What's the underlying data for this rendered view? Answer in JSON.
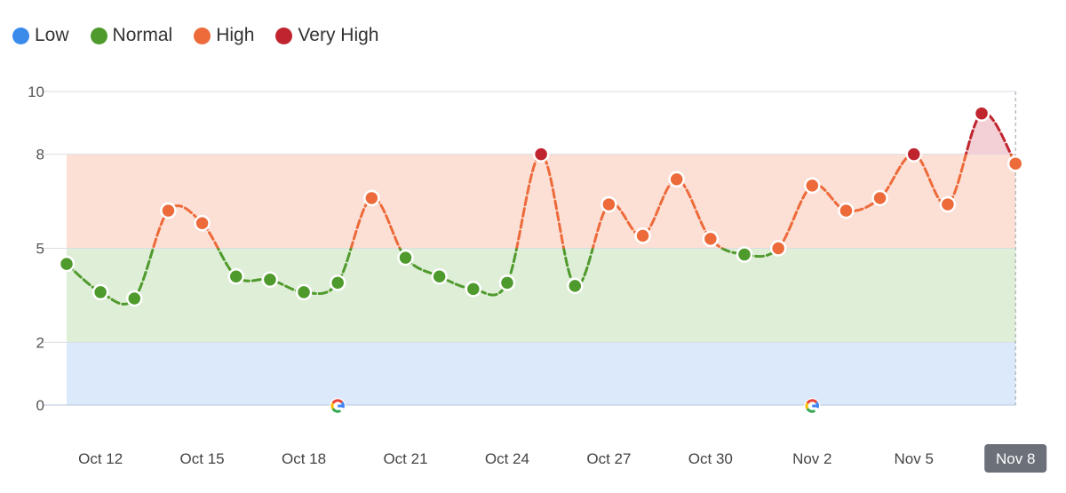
{
  "legend": [
    {
      "label": "Low",
      "color": "#3b8beb"
    },
    {
      "label": "Normal",
      "color": "#4f9a2c"
    },
    {
      "label": "High",
      "color": "#ed6a3a"
    },
    {
      "label": "Very High",
      "color": "#c0242f"
    }
  ],
  "chart_data": {
    "type": "line",
    "ylim": [
      0,
      10
    ],
    "yticks": [
      0,
      2,
      5,
      8,
      10
    ],
    "bands": [
      {
        "name": "Low",
        "from": 0,
        "to": 2,
        "color": "#dbe9fb"
      },
      {
        "name": "Normal",
        "from": 2,
        "to": 5,
        "color": "#dfeed7"
      },
      {
        "name": "High",
        "from": 5,
        "to": 8,
        "color": "#fce0d6"
      },
      {
        "name": "Very High",
        "from": 8,
        "to": 10,
        "color": "#f6d7dc"
      }
    ],
    "thresholds": {
      "normal": 2,
      "high": 5,
      "very_high": 8
    },
    "x_labels": [
      "Oct 12",
      "Oct 15",
      "Oct 18",
      "Oct 21",
      "Oct 24",
      "Oct 27",
      "Oct 30",
      "Nov 2",
      "Nov 5",
      "Nov 8"
    ],
    "x_label_indices": [
      1,
      4,
      7,
      10,
      13,
      16,
      19,
      22,
      25,
      28
    ],
    "highlighted_label": "Nov 8",
    "dates": [
      "Oct 11",
      "Oct 12",
      "Oct 13",
      "Oct 14",
      "Oct 15",
      "Oct 16",
      "Oct 17",
      "Oct 18",
      "Oct 19",
      "Oct 20",
      "Oct 21",
      "Oct 22",
      "Oct 23",
      "Oct 24",
      "Oct 25",
      "Oct 26",
      "Oct 27",
      "Oct 28",
      "Oct 29",
      "Oct 30",
      "Oct 31",
      "Nov 1",
      "Nov 2",
      "Nov 3",
      "Nov 4",
      "Nov 5",
      "Nov 6",
      "Nov 7",
      "Nov 8"
    ],
    "values": [
      4.5,
      3.6,
      3.4,
      6.2,
      5.8,
      4.1,
      4.0,
      3.6,
      3.9,
      6.6,
      4.7,
      4.1,
      3.7,
      3.9,
      8.0,
      3.8,
      6.4,
      5.4,
      7.2,
      5.3,
      4.8,
      5.0,
      7.0,
      6.2,
      6.6,
      8.0,
      6.4,
      9.3,
      7.7
    ],
    "google_markers": [
      "Oct 19",
      "Nov 2"
    ]
  }
}
